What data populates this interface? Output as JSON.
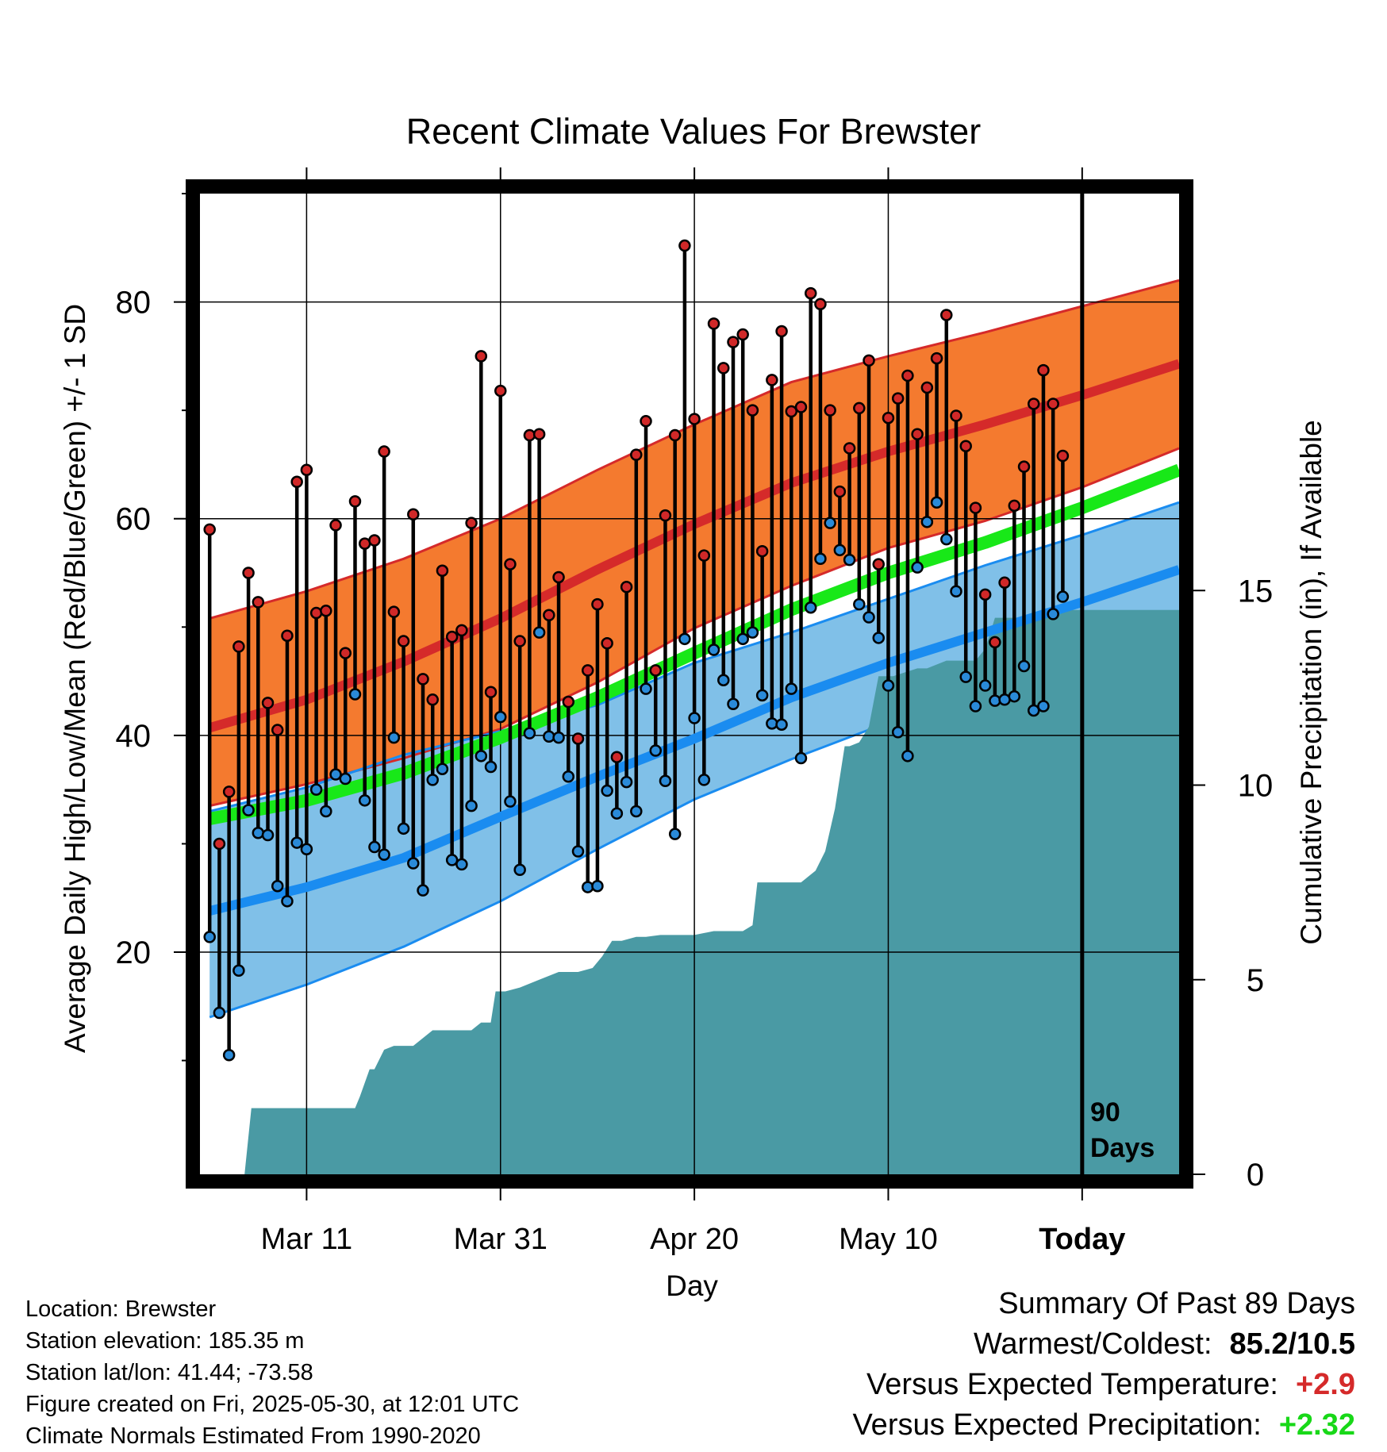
{
  "chart_data": {
    "type": "line",
    "title": "Recent Climate Values For Brewster",
    "xlabel": "Day",
    "ylabel_left": "Average Daily High/Low/Mean (Red/Blue/Green) +/- 1 SD",
    "ylabel_right": "Cumulative Precipitation (in), If Available",
    "x_tick_labels": [
      "Mar 11",
      "Mar 31",
      "Apr 20",
      "May 10",
      "Today"
    ],
    "x_tick_days": [
      10,
      30,
      50,
      70,
      90
    ],
    "y_ticks_left": [
      20,
      40,
      60,
      80
    ],
    "ylim_left": [
      -0.5,
      90
    ],
    "y_ticks_right": [
      0,
      5,
      10,
      15
    ],
    "ylim_right": [
      0,
      25.2
    ],
    "xlim": [
      -1,
      100
    ],
    "today_marker": {
      "x": 90,
      "label_line1": "90",
      "label_line2": "Days"
    },
    "grid": true,
    "normals": {
      "x": [
        0,
        10,
        20,
        30,
        40,
        50,
        60,
        70,
        80,
        90,
        100
      ],
      "high_mean": [
        40.7,
        43.3,
        46.8,
        50.8,
        55.3,
        59.5,
        63.3,
        66.2,
        68.7,
        71.4,
        74.3
      ],
      "high_plus_sd": [
        50.8,
        53.3,
        56.3,
        60.0,
        64.5,
        68.7,
        72.6,
        75.0,
        77.2,
        79.6,
        82.0
      ],
      "high_minus_sd": [
        33.5,
        35.5,
        37.9,
        40.6,
        44.9,
        49.9,
        53.8,
        57.3,
        59.8,
        62.9,
        66.5
      ],
      "mean_mean": [
        32.3,
        34.0,
        36.5,
        39.8,
        43.5,
        47.6,
        51.6,
        55.0,
        57.8,
        61.0,
        64.5
      ],
      "low_mean": [
        23.8,
        26.0,
        28.7,
        32.5,
        36.2,
        39.7,
        43.5,
        46.7,
        49.5,
        52.3,
        55.3
      ],
      "low_plus_sd": [
        33.0,
        35.2,
        38.2,
        40.4,
        42.8,
        46.7,
        49.5,
        52.6,
        55.7,
        58.5,
        61.5
      ],
      "low_minus_sd": [
        14.0,
        17.0,
        20.5,
        24.7,
        29.5,
        34.1,
        37.8,
        41.2,
        43.8,
        46.0,
        49.3
      ]
    },
    "daily": {
      "day_start": 0,
      "highs": [
        59.0,
        30.0,
        34.8,
        48.2,
        55.0,
        52.3,
        43.0,
        40.5,
        49.2,
        63.4,
        64.5,
        51.3,
        51.5,
        59.4,
        47.6,
        61.6,
        57.7,
        58.0,
        66.2,
        51.4,
        48.7,
        60.4,
        45.2,
        43.3,
        55.2,
        49.1,
        49.7,
        59.6,
        75.0,
        44.0,
        71.8,
        55.8,
        48.7,
        67.7,
        67.8,
        51.1,
        54.6,
        43.1,
        39.7,
        46.0,
        52.1,
        48.5,
        38.0,
        53.7,
        65.9,
        69.0,
        46.0,
        60.3,
        67.7,
        85.2,
        69.2,
        56.6,
        78.0,
        73.9,
        76.3,
        77.0,
        70.0,
        57.0,
        72.8,
        77.3,
        69.9,
        70.3,
        80.8,
        79.8,
        70.0,
        62.5,
        66.5,
        70.2,
        74.6,
        55.8,
        69.3,
        71.1,
        73.2,
        67.8,
        72.1,
        74.8,
        78.8,
        69.5,
        66.7,
        61.0,
        53.0,
        48.6,
        54.1,
        61.2,
        64.8,
        70.6,
        73.7,
        70.6,
        65.8
      ],
      "lows": [
        21.4,
        14.4,
        10.5,
        18.3,
        33.1,
        31.0,
        30.8,
        26.1,
        24.7,
        30.1,
        29.5,
        35.0,
        33.0,
        36.4,
        36.0,
        43.8,
        34.0,
        29.7,
        29.0,
        39.8,
        31.4,
        28.2,
        25.7,
        35.9,
        36.9,
        28.5,
        28.1,
        33.5,
        38.1,
        37.1,
        41.7,
        33.9,
        27.6,
        40.2,
        49.5,
        39.9,
        39.8,
        36.2,
        29.3,
        26.0,
        26.1,
        34.9,
        32.8,
        35.7,
        33.0,
        44.3,
        38.6,
        35.8,
        30.9,
        48.9,
        41.6,
        35.9,
        47.9,
        45.1,
        42.9,
        48.9,
        49.5,
        43.7,
        41.1,
        41.0,
        44.3,
        37.9,
        51.8,
        56.3,
        59.6,
        57.1,
        56.2,
        52.1,
        50.9,
        49.0,
        44.6,
        40.3,
        38.1,
        55.5,
        59.7,
        61.5,
        58.1,
        53.3,
        45.4,
        42.7,
        44.6,
        43.2,
        43.3,
        43.6,
        46.4,
        42.3,
        42.7,
        51.2,
        52.8
      ]
    },
    "precip_cum": {
      "x": [
        -0.5,
        3.0,
        3.6,
        4.3,
        15.0,
        15.5,
        16.5,
        17.0,
        18.0,
        19.0,
        21.0,
        23.0,
        23.5,
        27.0,
        28.0,
        29.0,
        29.5,
        30.5,
        32.0,
        34.0,
        36.0,
        38.0,
        39.5,
        40.5,
        41.5,
        42.5,
        44.0,
        45.0,
        46.5,
        50.0,
        52.0,
        55.0,
        56.0,
        56.5,
        57.0,
        58.0,
        61.0,
        62.5,
        63.5,
        64.5,
        65.5,
        66.0,
        67.0,
        68.0,
        69.0,
        69.7,
        70.5,
        73.0,
        74.0,
        76.0,
        77.5,
        79.0,
        80.0,
        81.0,
        83.0,
        84.5,
        86.0,
        87.5,
        90.0,
        100.0
      ],
      "y": [
        0.0,
        0.0,
        0.0,
        1.7,
        1.7,
        2.0,
        2.7,
        2.7,
        3.2,
        3.3,
        3.3,
        3.7,
        3.7,
        3.7,
        3.9,
        3.9,
        4.7,
        4.7,
        4.8,
        5.0,
        5.2,
        5.2,
        5.3,
        5.6,
        6.0,
        6.0,
        6.1,
        6.1,
        6.15,
        6.15,
        6.25,
        6.25,
        6.4,
        7.5,
        7.5,
        7.5,
        7.5,
        7.8,
        8.3,
        9.4,
        11.0,
        11.0,
        11.1,
        11.5,
        12.8,
        12.8,
        12.8,
        13.0,
        13.0,
        13.2,
        13.2,
        13.2,
        13.5,
        14.3,
        14.3,
        14.3,
        14.5,
        14.5,
        14.5,
        14.5
      ]
    },
    "colors": {
      "high_band": "#f47a2f",
      "high_line": "#d52a2a",
      "high_edge": "#d52a2a",
      "low_band": "#80c0e8",
      "low_line": "#1a8cf0",
      "low_edge": "#1a8cf0",
      "mean_line": "#18e818",
      "precip_fill": "#4a9aa4",
      "high_point": "#d02828",
      "low_point": "#2a8ad8",
      "frame": "#000000"
    }
  },
  "footer": {
    "location": "Location: Brewster",
    "elevation": "Station elevation: 185.35 m",
    "latlon": "Station lat/lon: 41.44; -73.58",
    "created": "Figure created on Fri, 2025-05-30, at 12:01 UTC",
    "normals": "Climate Normals Estimated From 1990-2020"
  },
  "summary": {
    "heading": "Summary Of Past 89 Days",
    "warmest_label": "Warmest/Coldest:",
    "warmest_value": "85.2/10.5",
    "temp_label": "Versus Expected Temperature:",
    "temp_value": "+2.9",
    "temp_color": "#d52a2a",
    "precip_label": "Versus Expected Precipitation:",
    "precip_value": "+2.32",
    "precip_color": "#18d818"
  }
}
